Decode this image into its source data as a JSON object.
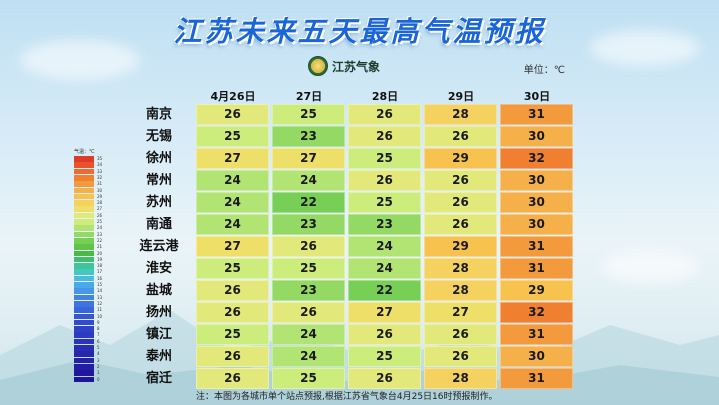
{
  "title": "江苏未来五天最高气温预报",
  "logo": {
    "name": "江苏气象",
    "icon": "weather-bureau-emblem-icon"
  },
  "unit_label": "单位：℃",
  "footnote": "注：本图为各城市单个站点预报,根据江苏省气象台4月25日16时预报制作。",
  "chart_data": {
    "type": "heatmap",
    "title": "江苏未来五天最高气温预报",
    "x_categories": [
      "4月26日",
      "27日",
      "28日",
      "29日",
      "30日"
    ],
    "y_categories": [
      "南京",
      "无锡",
      "徐州",
      "常州",
      "苏州",
      "南通",
      "连云港",
      "淮安",
      "盐城",
      "扬州",
      "镇江",
      "泰州",
      "宿迁"
    ],
    "values": [
      [
        26,
        25,
        26,
        28,
        31
      ],
      [
        25,
        23,
        26,
        26,
        30
      ],
      [
        27,
        27,
        25,
        29,
        32
      ],
      [
        24,
        24,
        26,
        26,
        30
      ],
      [
        24,
        22,
        25,
        26,
        30
      ],
      [
        24,
        23,
        23,
        26,
        30
      ],
      [
        27,
        26,
        24,
        29,
        31
      ],
      [
        25,
        25,
        24,
        28,
        31
      ],
      [
        26,
        23,
        22,
        28,
        29
      ],
      [
        26,
        26,
        27,
        27,
        32
      ],
      [
        25,
        24,
        26,
        26,
        31
      ],
      [
        26,
        24,
        25,
        26,
        30
      ],
      [
        26,
        25,
        26,
        28,
        31
      ]
    ],
    "unit": "℃",
    "legend": {
      "title": "气温：℃",
      "placement": "left",
      "levels": [
        35,
        34,
        33,
        32,
        31,
        30,
        29,
        28,
        27,
        26,
        25,
        24,
        23,
        22,
        21,
        20,
        19,
        18,
        17,
        16,
        15,
        14,
        13,
        12,
        11,
        10,
        9,
        8,
        7,
        6,
        5,
        4,
        3,
        2,
        1,
        0
      ],
      "colors": {
        "35": "#e03a2a",
        "34": "#e8532e",
        "33": "#ee6a32",
        "32": "#f07f30",
        "31": "#f39a3c",
        "30": "#f6b04a",
        "29": "#f7c24e",
        "28": "#f5d25f",
        "27": "#eedf68",
        "26": "#e2e97a",
        "25": "#ccec7c",
        "24": "#b2e474",
        "23": "#93d963",
        "22": "#78cf55",
        "21": "#5fc54a",
        "20": "#48bb44",
        "19": "#3fbf6a",
        "18": "#3ec59a",
        "17": "#43c7bf",
        "16": "#48bde0",
        "15": "#4aa9ea",
        "14": "#4696ea",
        "13": "#4284e6",
        "12": "#3f74e0",
        "11": "#3a64da",
        "10": "#3657d4",
        "9": "#324bcc",
        "8": "#2f42c6",
        "7": "#2c3ac0",
        "6": "#2a33ba",
        "5": "#282db4",
        "4": "#2627ae",
        "3": "#2422a8",
        "2": "#221da2",
        "1": "#20189c",
        "0": "#1e1496"
      }
    }
  }
}
